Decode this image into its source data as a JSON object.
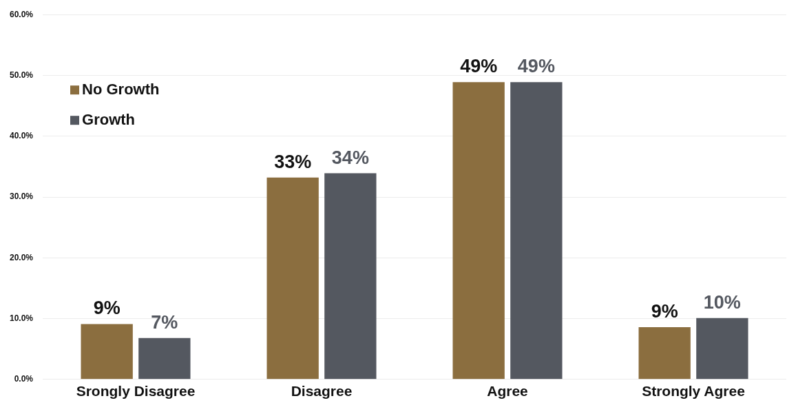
{
  "chart_data": {
    "type": "bar",
    "categories": [
      "Srongly Disagree",
      "Disagree",
      "Agree",
      "Strongly Agree"
    ],
    "series": [
      {
        "name": "No Growth",
        "color": "#8b6e3f",
        "values": [
          9.1,
          33.2,
          48.9,
          8.6
        ],
        "value_labels": [
          "9%",
          "33%",
          "49%",
          "9%"
        ]
      },
      {
        "name": "Growth",
        "color": "#545860",
        "values": [
          6.8,
          33.9,
          48.9,
          10.1
        ],
        "value_labels": [
          "7%",
          "34%",
          "49%",
          "10%"
        ]
      }
    ],
    "ylim": [
      0,
      60
    ],
    "yticks": [
      {
        "value": 0,
        "label": "0.0%"
      },
      {
        "value": 10,
        "label": "10.0%"
      },
      {
        "value": 20,
        "label": "20.0%"
      },
      {
        "value": 30,
        "label": "30.0%"
      },
      {
        "value": 40,
        "label": "40.0%"
      },
      {
        "value": 50,
        "label": "50.0%"
      },
      {
        "value": 60,
        "label": "60.0%"
      }
    ],
    "grid": "y",
    "legend": "top left"
  }
}
